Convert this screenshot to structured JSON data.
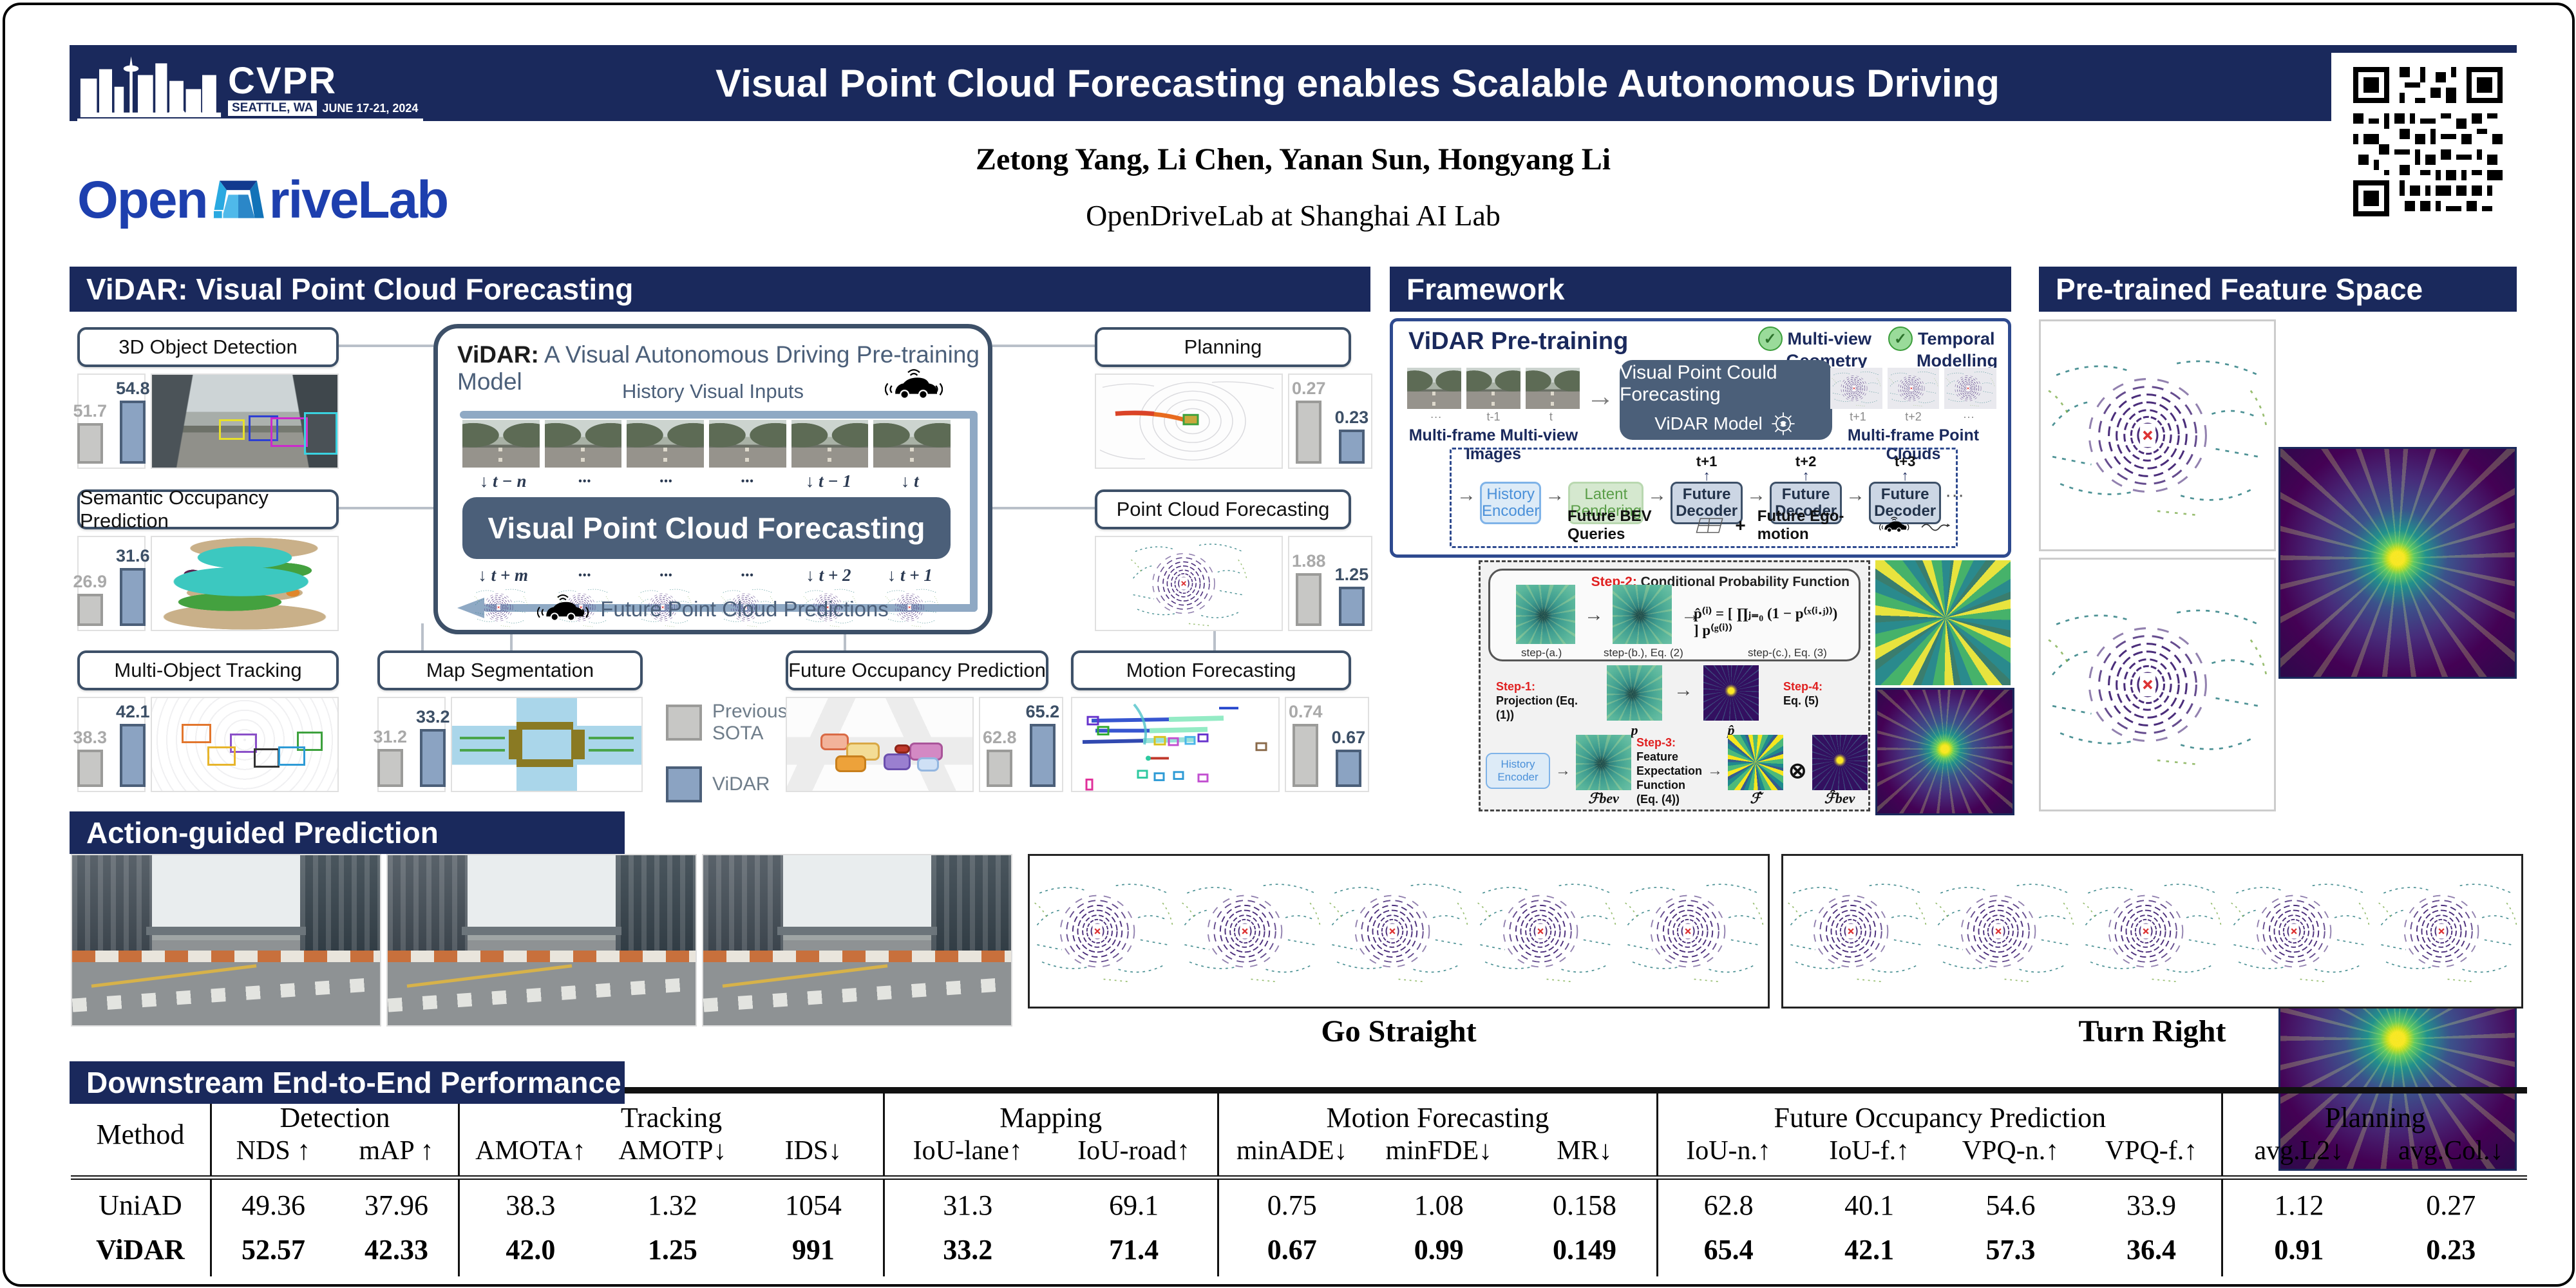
{
  "header": {
    "conference": "CVPR",
    "location": "SEATTLE, WA",
    "dates": "JUNE 17-21, 2024",
    "title": "Visual Point Cloud Forecasting enables Scalable Autonomous Driving",
    "authors": "Zetong Yang, Li Chen, Yanan Sun, Hongyang Li",
    "affiliation": "OpenDriveLab at Shanghai AI Lab",
    "logo_open": "Open",
    "logo_rest": "riveLab"
  },
  "colors": {
    "navy": "#1a295c",
    "slate": "#4b5f79",
    "bar_vidar": "#8ba3c2",
    "bar_sota": "#c7c7c5",
    "logo_blue": "#1d3fae",
    "step_red": "#e02020"
  },
  "vidar": {
    "section_title": "ViDAR: Visual Point Cloud Forecasting",
    "legend": {
      "sota": "Previous SOTA",
      "vidar": "ViDAR"
    },
    "tasks": {
      "detection": {
        "label": "3D Object Detection",
        "sota": "51.7",
        "vidar": "54.8",
        "sota_h": 48,
        "vidar_h": 78
      },
      "occupancy": {
        "label": "Semantic Occupancy Prediction",
        "sota": "26.9",
        "vidar": "31.6",
        "sota_h": 38,
        "vidar_h": 68
      },
      "tracking": {
        "label": "Multi-Object Tracking",
        "sota": "38.3",
        "vidar": "42.1",
        "sota_h": 44,
        "vidar_h": 76
      },
      "mapseg": {
        "label": "Map Segmentation",
        "sota": "31.2",
        "vidar": "33.2",
        "sota_h": 45,
        "vidar_h": 68
      },
      "planning": {
        "label": "Planning",
        "sota": "0.27",
        "vidar": "0.23",
        "sota_h": 74,
        "vidar_h": 40
      },
      "pcforecast": {
        "label": "Point Cloud Forecasting",
        "sota": "1.88",
        "vidar": "1.25",
        "sota_h": 62,
        "vidar_h": 46
      },
      "futocc": {
        "label": "Future Occupancy Prediction",
        "sota": "62.8",
        "vidar": "65.2",
        "sota_h": 44,
        "vidar_h": 76
      },
      "motion": {
        "label": "Motion Forecasting",
        "sota": "0.74",
        "vidar": "0.67",
        "sota_h": 76,
        "vidar_h": 44
      }
    },
    "diagram": {
      "name": "ViDAR:",
      "title": " A Visual Autonomous Driving Pre-training Model",
      "history_label": "History Visual Inputs",
      "core_label": "Visual Point Cloud Forecasting",
      "future_label": "Future Point Cloud Predictions",
      "in_times": [
        "↓ t − n",
        "···",
        "···",
        "···",
        "↓ t − 1",
        "↓ t"
      ],
      "out_times": [
        "↓ t + m",
        "···",
        "···",
        "···",
        "↓ t + 2",
        "↓ t + 1"
      ]
    }
  },
  "framework": {
    "section_title": "Framework",
    "pretrain_label": "ViDAR Pre-training",
    "badge1a": "Multi-view",
    "badge1b": "Geometry",
    "badge2a": "Temporal",
    "badge2b": "Modelling",
    "check": "✓",
    "model_line1": "Visual Point Could Forecasting",
    "model_line2": "ViDAR Model",
    "in_caption": "Multi-frame Multi-view Images",
    "out_caption": "Multi-frame Point Clouds",
    "in_times": [
      "···",
      "t-1",
      "t"
    ],
    "out_times": [
      "t+1",
      "t+2",
      "···"
    ],
    "flow_arrow": "→",
    "pipeline": {
      "encoder": "History Encoder",
      "render": "Latent Rendering",
      "decoder": "Future Decoder",
      "times": [
        "t+1",
        "t+2",
        "t+3"
      ],
      "up": "↑",
      "more": "···",
      "bev": "Future BEV Queries",
      "plus": "+",
      "ego": "Future Ego-motion"
    },
    "latent": {
      "step2_red": "Step-2:",
      "step2": " Conditional Probability Function",
      "step_a": "step-(a.)",
      "step_b": "step-(b.), Eq. (2)",
      "step_c": "step-(c.), Eq. (3)",
      "equation": "p̂⁽ⁱ⁾ = [ ∏ⱼ₌₀ (1 − p⁽ˣ⁽ⁱ·ʲ⁾⁾) ] p⁽ᵍ⁽ⁱ⁾⁾",
      "step1_red": "Step-1:",
      "step1": "Projection (Eq. (1))",
      "step3_red": "Step-3:",
      "step3a": "Feature Expectation",
      "step3b": "Function (Eq. (4))",
      "step4_red": "Step-4:",
      "step4": "Eq. (5)",
      "encoder": "History Encoder",
      "otimes": "⊗",
      "arrow": "→",
      "lbl_fbev": "ℱbev",
      "lbl_p": "p",
      "lbl_phat": "p̂",
      "lbl_fhat": "ℱ̂",
      "lbl_fhatbev": "ℱ̂bev"
    }
  },
  "feature_space": {
    "section_title": "Pre-trained Feature Space"
  },
  "action": {
    "section_title": "Action-guided Prediction",
    "caption1": "Go Straight",
    "caption2": "Turn Right"
  },
  "table": {
    "section_title": "Downstream End-to-End Performance",
    "method": "Method",
    "groups": [
      {
        "label": "Detection"
      },
      {
        "label": "Tracking"
      },
      {
        "label": "Mapping"
      },
      {
        "label": "Motion Forecasting"
      },
      {
        "label": "Future Occupancy Prediction"
      },
      {
        "label": "Planning"
      }
    ],
    "cols": [
      "NDS ↑",
      "mAP ↑",
      "AMOTA↑",
      "AMOTP↓",
      "IDS↓",
      "IoU-lane↑",
      "IoU-road↑",
      "minADE↓",
      "minFDE↓",
      "MR↓",
      "IoU-n.↑",
      "IoU-f.↑",
      "VPQ-n.↑",
      "VPQ-f.↑",
      "avg.L2↓",
      "avg.Col.↓"
    ],
    "rows": [
      {
        "method": "UniAD",
        "values": [
          "49.36",
          "37.96",
          "38.3",
          "1.32",
          "1054",
          "31.3",
          "69.1",
          "0.75",
          "1.08",
          "0.158",
          "62.8",
          "40.1",
          "54.6",
          "33.9",
          "1.12",
          "0.27"
        ]
      },
      {
        "method": "ViDAR",
        "values": [
          "52.57",
          "42.33",
          "42.0",
          "1.25",
          "991",
          "33.2",
          "71.4",
          "0.67",
          "0.99",
          "0.149",
          "65.4",
          "42.1",
          "57.3",
          "36.4",
          "0.91",
          "0.23"
        ]
      }
    ]
  },
  "chart_data": [
    {
      "type": "bar",
      "title": "3D Object Detection",
      "categories": [
        "Previous SOTA",
        "ViDAR"
      ],
      "values": [
        51.7,
        54.8
      ],
      "higher_is_better": true
    },
    {
      "type": "bar",
      "title": "Semantic Occupancy Prediction",
      "categories": [
        "Previous SOTA",
        "ViDAR"
      ],
      "values": [
        26.9,
        31.6
      ],
      "higher_is_better": true
    },
    {
      "type": "bar",
      "title": "Multi-Object Tracking",
      "categories": [
        "Previous SOTA",
        "ViDAR"
      ],
      "values": [
        38.3,
        42.1
      ],
      "higher_is_better": true
    },
    {
      "type": "bar",
      "title": "Map Segmentation",
      "categories": [
        "Previous SOTA",
        "ViDAR"
      ],
      "values": [
        31.2,
        33.2
      ],
      "higher_is_better": true
    },
    {
      "type": "bar",
      "title": "Planning",
      "categories": [
        "Previous SOTA",
        "ViDAR"
      ],
      "values": [
        0.27,
        0.23
      ],
      "higher_is_better": false
    },
    {
      "type": "bar",
      "title": "Point Cloud Forecasting",
      "categories": [
        "Previous SOTA",
        "ViDAR"
      ],
      "values": [
        1.88,
        1.25
      ],
      "higher_is_better": false
    },
    {
      "type": "bar",
      "title": "Future Occupancy Prediction",
      "categories": [
        "Previous SOTA",
        "ViDAR"
      ],
      "values": [
        62.8,
        65.2
      ],
      "higher_is_better": true
    },
    {
      "type": "bar",
      "title": "Motion Forecasting",
      "categories": [
        "Previous SOTA",
        "ViDAR"
      ],
      "values": [
        0.74,
        0.67
      ],
      "higher_is_better": false
    },
    {
      "type": "table",
      "title": "Downstream End-to-End Performance",
      "columns": [
        "Method",
        "NDS",
        "mAP",
        "AMOTA",
        "AMOTP",
        "IDS",
        "IoU-lane",
        "IoU-road",
        "minADE",
        "minFDE",
        "MR",
        "IoU-n.",
        "IoU-f.",
        "VPQ-n.",
        "VPQ-f.",
        "avg.L2",
        "avg.Col."
      ],
      "rows": [
        [
          "UniAD",
          49.36,
          37.96,
          38.3,
          1.32,
          1054,
          31.3,
          69.1,
          0.75,
          1.08,
          0.158,
          62.8,
          40.1,
          54.6,
          33.9,
          1.12,
          0.27
        ],
        [
          "ViDAR",
          52.57,
          42.33,
          42.0,
          1.25,
          991,
          33.2,
          71.4,
          0.67,
          0.99,
          0.149,
          65.4,
          42.1,
          57.3,
          36.4,
          0.91,
          0.23
        ]
      ]
    }
  ]
}
